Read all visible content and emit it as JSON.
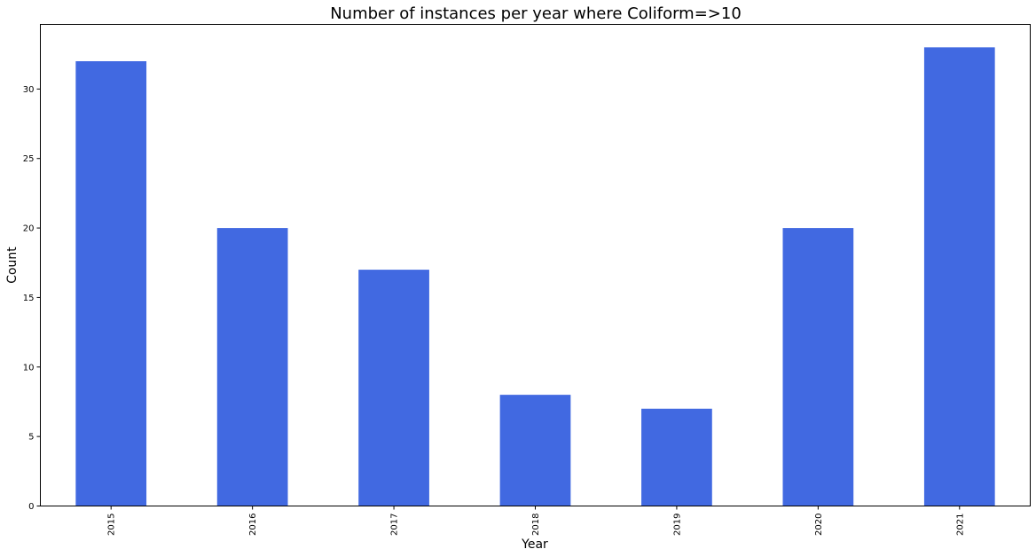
{
  "chart_data": {
    "type": "bar",
    "title": "Number of instances per year where Coliform=>10",
    "xlabel": "Year",
    "ylabel": "Count",
    "categories": [
      "2015",
      "2016",
      "2017",
      "2018",
      "2019",
      "2020",
      "2021"
    ],
    "values": [
      32,
      20,
      17,
      8,
      7,
      20,
      33
    ],
    "ylim": [
      0,
      34.65
    ],
    "yticks": [
      0,
      5,
      10,
      15,
      20,
      25,
      30
    ],
    "ytick_labels": [
      "0",
      "5",
      "10",
      "15",
      "20",
      "25",
      "30"
    ],
    "x_tick_rotation": "vertical",
    "grid": false,
    "legend": "none",
    "bar_color": "#4169e1",
    "background_color": "#ffffff"
  }
}
